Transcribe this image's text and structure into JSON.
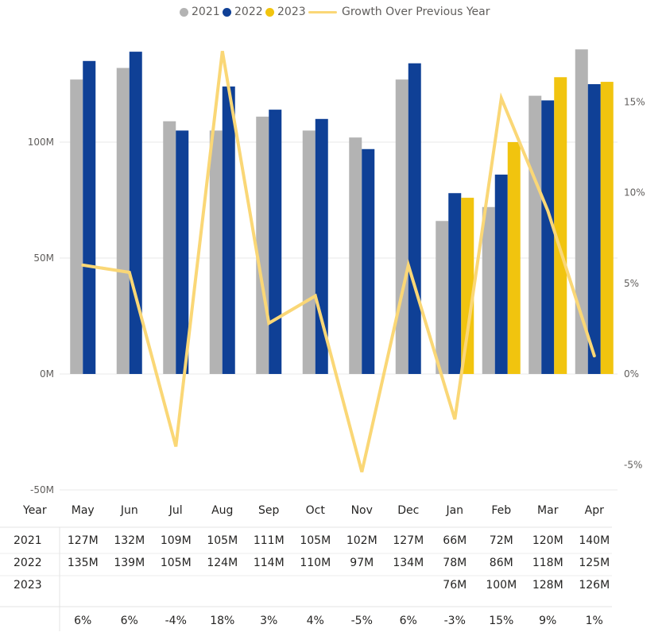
{
  "colors": {
    "2021": "#b3b3b3",
    "2022": "#0f4096",
    "2023": "#f1c40f",
    "growth": "#fad776",
    "grid": "#e8e8e8",
    "axis_text": "#605e5c"
  },
  "legend": [
    {
      "name": "2021",
      "kind": "dot",
      "color": "#b3b3b3"
    },
    {
      "name": "2022",
      "kind": "dot",
      "color": "#0f4096"
    },
    {
      "name": "2023",
      "kind": "dot",
      "color": "#f1c40f"
    },
    {
      "name": "Growth Over Previous Year",
      "kind": "line",
      "color": "#fad776"
    }
  ],
  "chart_data": {
    "type": "bar",
    "categories": [
      "May",
      "Jun",
      "Jul",
      "Aug",
      "Sep",
      "Oct",
      "Nov",
      "Dec",
      "Jan",
      "Feb",
      "Mar",
      "Apr"
    ],
    "series": [
      {
        "name": "2021",
        "values": [
          127,
          132,
          109,
          105,
          111,
          105,
          102,
          127,
          66,
          72,
          120,
          140
        ]
      },
      {
        "name": "2022",
        "values": [
          135,
          139,
          105,
          124,
          114,
          110,
          97,
          134,
          78,
          86,
          118,
          125
        ]
      },
      {
        "name": "2023",
        "values": [
          null,
          null,
          null,
          null,
          null,
          null,
          null,
          null,
          76,
          100,
          128,
          126
        ]
      }
    ],
    "line_series": {
      "name": "Growth Over Previous Year",
      "axis": "right",
      "values": [
        6,
        5.6,
        -4,
        17.8,
        2.8,
        4.3,
        -5.4,
        6,
        -2.5,
        15.2,
        9,
        1
      ]
    },
    "y_left": {
      "ticks": [
        "-50M",
        "0M",
        "50M",
        "100M"
      ],
      "tick_values": [
        -50,
        0,
        50,
        100
      ],
      "range": [
        -50,
        150
      ],
      "unit": "M"
    },
    "y_right": {
      "ticks": [
        "-5%",
        "0%",
        "5%",
        "10%",
        "15%"
      ],
      "tick_values": [
        -5,
        0,
        5,
        10,
        15
      ],
      "range": [
        -6.35,
        19
      ]
    },
    "grid": true,
    "legend_position": "top-center"
  },
  "table": {
    "header_label": "Year",
    "rows": [
      {
        "label": "2021",
        "values": [
          "127M",
          "132M",
          "109M",
          "105M",
          "111M",
          "105M",
          "102M",
          "127M",
          "66M",
          "72M",
          "120M",
          "140M"
        ]
      },
      {
        "label": "2022",
        "values": [
          "135M",
          "139M",
          "105M",
          "124M",
          "114M",
          "110M",
          "97M",
          "134M",
          "78M",
          "86M",
          "118M",
          "125M"
        ]
      },
      {
        "label": "2023",
        "values": [
          "",
          "",
          "",
          "",
          "",
          "",
          "",
          "",
          "76M",
          "100M",
          "128M",
          "126M"
        ]
      }
    ],
    "growth_row": [
      "6%",
      "6%",
      "-4%",
      "18%",
      "3%",
      "4%",
      "-5%",
      "6%",
      "-3%",
      "15%",
      "9%",
      "1%"
    ]
  }
}
